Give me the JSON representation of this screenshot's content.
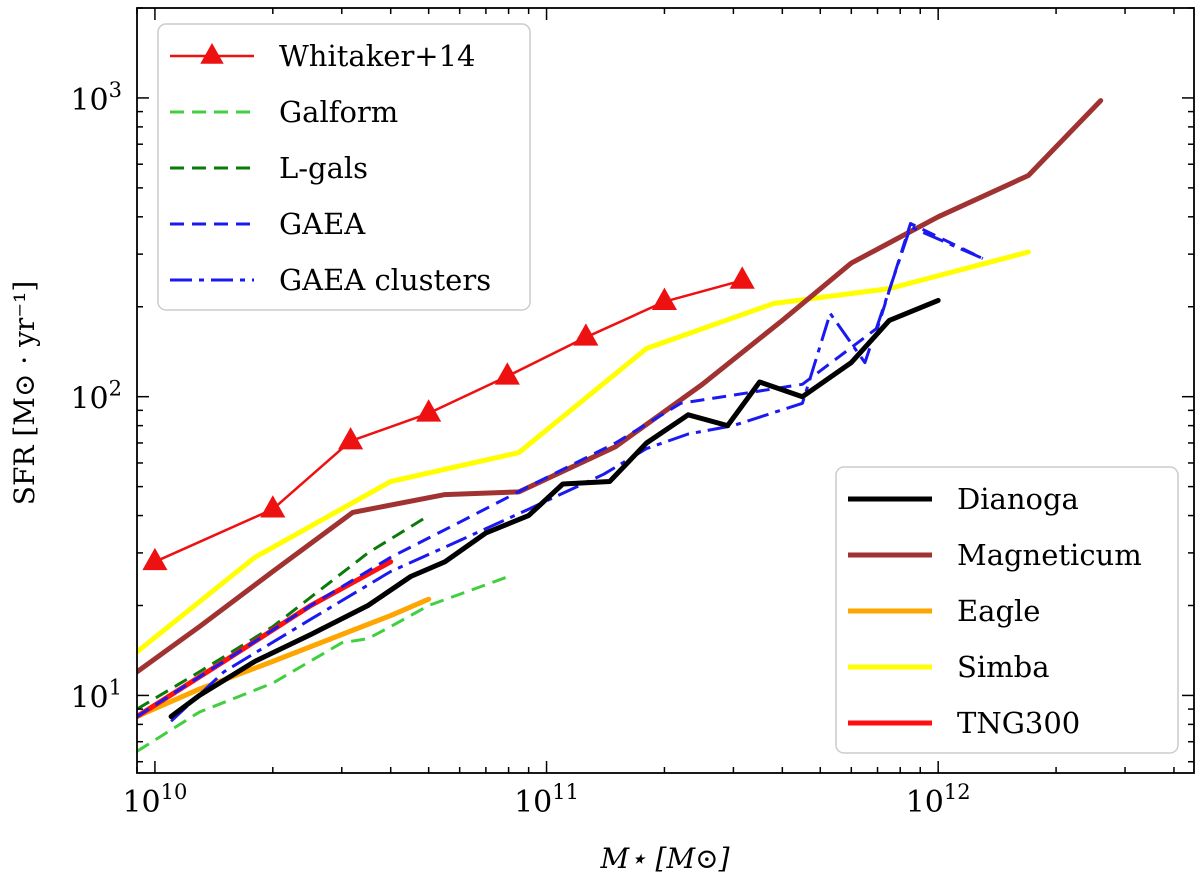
{
  "chart_data": {
    "type": "line",
    "title": "",
    "xlabel": "M⋆ [M⊙]",
    "ylabel": "SFR [M⊙ · yr⁻¹]",
    "xscale": "log",
    "yscale": "log",
    "xlim": [
      9000000000.0,
      4500000000000.0
    ],
    "ylim": [
      5.5,
      2000
    ],
    "xticks": [
      {
        "value": 10000000000.0,
        "base": "10",
        "exp": "10"
      },
      {
        "value": 100000000000.0,
        "base": "10",
        "exp": "11"
      },
      {
        "value": 1000000000000.0,
        "base": "10",
        "exp": "12"
      }
    ],
    "yticks": [
      {
        "value": 10,
        "base": "10",
        "exp": "1"
      },
      {
        "value": 100,
        "base": "10",
        "exp": "2"
      },
      {
        "value": 1000,
        "base": "10",
        "exp": "3"
      }
    ],
    "legend_top_left": [
      "Whitaker+14",
      "Galform",
      "L-gals",
      "GAEA",
      "GAEA clusters"
    ],
    "legend_bottom_right": [
      "Dianoga",
      "Magneticum",
      "Eagle",
      "Simba",
      "TNG300"
    ],
    "series": [
      {
        "name": "Whitaker+14",
        "color": "#ee1111",
        "dash": "",
        "width": 2.5,
        "marker": "triangle",
        "x": [
          10000000000.0,
          20000000000.0,
          31600000000.0,
          50000000000.0,
          79400000000.0,
          126000000000.0,
          200000000000.0,
          316000000000.0
        ],
        "y": [
          28,
          42,
          71,
          88,
          117,
          158,
          208,
          245
        ]
      },
      {
        "name": "Galform",
        "color": "#3fcf3f",
        "dash": "14,8",
        "width": 3,
        "x": [
          9000000000.0,
          13000000000.0,
          20000000000.0,
          30000000000.0,
          35000000000.0,
          40000000000.0,
          50000000000.0,
          80000000000.0
        ],
        "y": [
          6.5,
          8.8,
          11,
          15,
          15.5,
          17,
          20,
          25
        ]
      },
      {
        "name": "L-gals",
        "color": "#0a7a0a",
        "dash": "14,8",
        "width": 3,
        "x": [
          9000000000.0,
          13000000000.0,
          20000000000.0,
          35000000000.0,
          50000000000.0
        ],
        "y": [
          9,
          12,
          17,
          30,
          40
        ]
      },
      {
        "name": "GAEA",
        "color": "#1a1af0",
        "dash": "14,8",
        "width": 3,
        "x": [
          9000000000.0,
          15000000000.0,
          25000000000.0,
          40000000000.0,
          60000000000.0,
          90000000000.0,
          150000000000.0,
          220000000000.0,
          450000000000.0,
          700000000000.0,
          850000000000.0,
          1300000000000.0
        ],
        "y": [
          8.5,
          13,
          20,
          29,
          38,
          50,
          70,
          95,
          110,
          170,
          380,
          290
        ]
      },
      {
        "name": "GAEA clusters",
        "color": "#1a1af0",
        "dash": "22,7,5,7",
        "width": 3,
        "x": [
          11000000000.0,
          15000000000.0,
          25000000000.0,
          40000000000.0,
          60000000000.0,
          90000000000.0,
          140000000000.0,
          180000000000.0,
          230000000000.0,
          300000000000.0,
          450000000000.0,
          530000000000.0,
          650000000000.0,
          850000000000.0,
          1300000000000.0
        ],
        "y": [
          8.2,
          12,
          18,
          26,
          33,
          42,
          55,
          67,
          75,
          80,
          95,
          190,
          130,
          370,
          290
        ]
      },
      {
        "name": "Dianoga",
        "color": "#000000",
        "dash": "",
        "width": 5,
        "x": [
          11000000000.0,
          13000000000.0,
          18000000000.0,
          25000000000.0,
          35000000000.0,
          45000000000.0,
          55000000000.0,
          70000000000.0,
          90000000000.0,
          110000000000.0,
          145000000000.0,
          180000000000.0,
          230000000000.0,
          290000000000.0,
          350000000000.0,
          450000000000.0,
          600000000000.0,
          750000000000.0,
          1000000000000.0
        ],
        "y": [
          8.5,
          10,
          13,
          16,
          20,
          25,
          28,
          35,
          40,
          51,
          52,
          70,
          87,
          80,
          112,
          100,
          130,
          180,
          210
        ]
      },
      {
        "name": "Magneticum",
        "color": "#a03232",
        "dash": "",
        "width": 5,
        "x": [
          9000000000.0,
          13000000000.0,
          20000000000.0,
          32000000000.0,
          55000000000.0,
          85000000000.0,
          150000000000.0,
          250000000000.0,
          400000000000.0,
          600000000000.0,
          1000000000000.0,
          1700000000000.0,
          2600000000000.0
        ],
        "y": [
          12,
          17,
          26,
          41,
          47,
          48,
          68,
          110,
          180,
          280,
          400,
          550,
          980
        ]
      },
      {
        "name": "Eagle",
        "color": "#ffa500",
        "dash": "",
        "width": 5,
        "x": [
          9000000000.0,
          13000000000.0,
          20000000000.0,
          30000000000.0,
          40000000000.0,
          50000000000.0
        ],
        "y": [
          8.5,
          10.5,
          13,
          16,
          18.5,
          21
        ]
      },
      {
        "name": "Simba",
        "color": "#ffff00",
        "dash": "",
        "width": 5,
        "x": [
          9000000000.0,
          18000000000.0,
          40000000000.0,
          85000000000.0,
          180000000000.0,
          380000000000.0,
          750000000000.0,
          1700000000000.0
        ],
        "y": [
          14,
          29,
          52,
          65,
          145,
          205,
          230,
          305
        ]
      },
      {
        "name": "TNG300",
        "color": "#ff1010",
        "dash": "",
        "width": 5,
        "x": [
          9000000000.0,
          15000000000.0,
          25000000000.0,
          40000000000.0
        ],
        "y": [
          8.5,
          13,
          20,
          28
        ]
      }
    ]
  }
}
